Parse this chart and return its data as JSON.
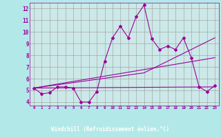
{
  "xlabel": "Windchill (Refroidissement éolien,°C)",
  "background_color": "#b3e8e8",
  "plot_bg_color": "#cce8e8",
  "grid_color": "#999999",
  "line_color": "#990099",
  "axis_label_bg": "#6666aa",
  "x_ticks": [
    0,
    1,
    2,
    3,
    4,
    5,
    6,
    7,
    8,
    9,
    10,
    11,
    12,
    13,
    14,
    15,
    16,
    17,
    18,
    19,
    20,
    21,
    22,
    23
  ],
  "y_ticks": [
    4,
    5,
    6,
    7,
    8,
    9,
    10,
    11,
    12
  ],
  "ylim": [
    3.7,
    12.5
  ],
  "xlim": [
    -0.5,
    23.5
  ],
  "series0": {
    "x": [
      0,
      1,
      2,
      3,
      4,
      5,
      6,
      7,
      8,
      9,
      10,
      11,
      12,
      13,
      14,
      15,
      16,
      17,
      18,
      19,
      20,
      21,
      22,
      23
    ],
    "y": [
      5.2,
      4.7,
      4.8,
      5.3,
      5.3,
      5.2,
      4.0,
      4.0,
      4.9,
      7.5,
      9.5,
      10.5,
      9.5,
      11.3,
      12.3,
      9.4,
      8.5,
      8.8,
      8.5,
      9.5,
      7.8,
      5.3,
      4.9,
      5.4
    ]
  },
  "line1": {
    "x": [
      0,
      23
    ],
    "y": [
      5.2,
      7.8
    ]
  },
  "line2": {
    "x": [
      0,
      23
    ],
    "y": [
      5.2,
      5.3
    ]
  },
  "line3": {
    "x": [
      0,
      14,
      23
    ],
    "y": [
      5.2,
      6.5,
      9.5
    ]
  }
}
